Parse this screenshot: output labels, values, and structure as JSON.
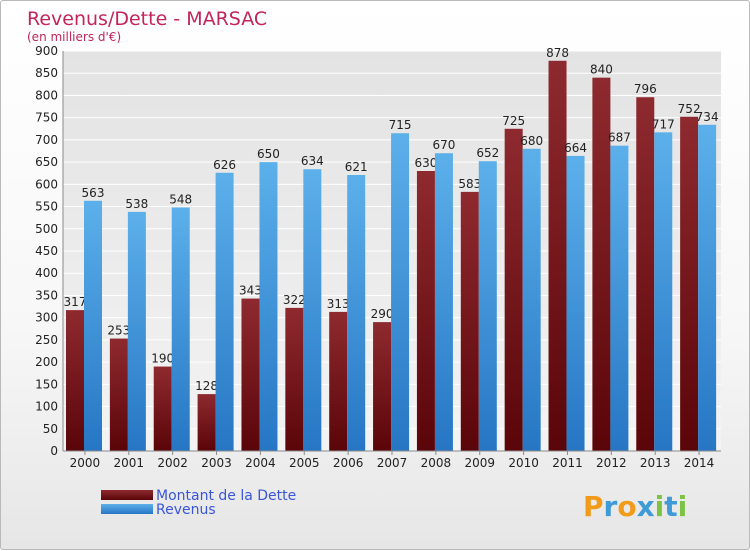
{
  "chart_data": {
    "type": "bar",
    "title": "Revenus/Dette - MARSAC",
    "subtitle": "(en milliers d'€)",
    "categories": [
      "2000",
      "2001",
      "2002",
      "2003",
      "2004",
      "2005",
      "2006",
      "2007",
      "2008",
      "2009",
      "2010",
      "2011",
      "2012",
      "2013",
      "2014"
    ],
    "series": [
      {
        "name": "Montant de la Dette",
        "color": "#7a0f14",
        "values": [
          317,
          253,
          190,
          128,
          343,
          322,
          313,
          290,
          630,
          583,
          725,
          878,
          840,
          796,
          752
        ]
      },
      {
        "name": "Revenus",
        "color": "#2f8fdc",
        "values": [
          563,
          538,
          548,
          626,
          650,
          634,
          621,
          715,
          670,
          652,
          680,
          664,
          687,
          717,
          734
        ]
      }
    ],
    "ylim": [
      0,
      900
    ],
    "yticks": [
      0,
      50,
      100,
      150,
      200,
      250,
      300,
      350,
      400,
      450,
      500,
      550,
      600,
      650,
      700,
      750,
      800,
      850,
      900
    ],
    "grid": "horizontal",
    "legend_position": "bottom-left"
  },
  "logo": {
    "letters": [
      {
        "ch": "P",
        "color": "#f29a1a"
      },
      {
        "ch": "r",
        "color": "#3f9bd8"
      },
      {
        "ch": "o",
        "color": "#f29a1a"
      },
      {
        "ch": "x",
        "color": "#3f9bd8"
      },
      {
        "ch": "i",
        "color": "#7cc243"
      },
      {
        "ch": "t",
        "color": "#3f9bd8"
      },
      {
        "ch": "i",
        "color": "#7cc243"
      }
    ]
  }
}
